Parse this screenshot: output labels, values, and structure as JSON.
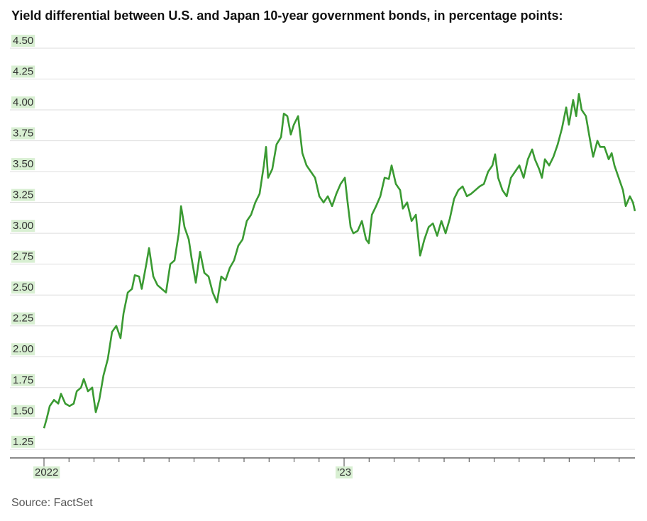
{
  "chart_data": {
    "type": "line",
    "title": "Yield differential between U.S. and Japan 10-year government bonds, in percentage points:",
    "source": "Source: FactSet",
    "x": [
      0,
      0.11,
      0.23,
      0.4,
      0.57,
      0.68,
      0.85,
      1.02,
      1.19,
      1.31,
      1.48,
      1.59,
      1.76,
      1.93,
      2.07,
      2.21,
      2.38,
      2.55,
      2.72,
      2.89,
      3.06,
      3.18,
      3.35,
      3.52,
      3.63,
      3.8,
      3.91,
      4.09,
      4.2,
      4.37,
      4.54,
      4.71,
      4.88,
      5.05,
      5.22,
      5.39,
      5.48,
      5.62,
      5.79,
      5.9,
      6.07,
      6.24,
      6.41,
      6.58,
      6.75,
      6.92,
      7.09,
      7.26,
      7.43,
      7.6,
      7.77,
      7.94,
      8.11,
      8.28,
      8.45,
      8.62,
      8.79,
      8.88,
      8.96,
      9.13,
      9.3,
      9.48,
      9.59,
      9.73,
      9.87,
      9.99,
      10.16,
      10.33,
      10.5,
      10.67,
      10.84,
      11.01,
      11.18,
      11.35,
      11.52,
      11.69,
      11.86,
      12.03,
      12.14,
      12.26,
      12.37,
      12.54,
      12.71,
      12.88,
      12.99,
      13.11,
      13.28,
      13.45,
      13.62,
      13.79,
      13.9,
      14.07,
      14.24,
      14.35,
      14.52,
      14.7,
      14.87,
      15.04,
      15.21,
      15.38,
      15.55,
      15.72,
      15.89,
      16.06,
      16.23,
      16.4,
      16.57,
      16.74,
      16.91,
      17.08,
      17.25,
      17.42,
      17.59,
      17.76,
      17.93,
      18.04,
      18.16,
      18.33,
      18.5,
      18.67,
      18.84,
      19.01,
      19.18,
      19.35,
      19.52,
      19.63,
      19.8,
      19.91,
      20.03,
      20.2,
      20.37,
      20.54,
      20.71,
      20.88,
      20.99,
      21.16,
      21.28,
      21.39,
      21.5,
      21.67,
      21.84,
      21.96,
      22.13,
      22.24,
      22.41,
      22.58,
      22.7,
      22.81,
      22.98,
      23.15,
      23.26,
      23.43,
      23.55,
      23.63
    ],
    "series": [
      {
        "name": "Yield differential",
        "color": "#3a9a32",
        "values": [
          1.42,
          1.5,
          1.6,
          1.65,
          1.62,
          1.7,
          1.62,
          1.6,
          1.62,
          1.72,
          1.75,
          1.82,
          1.72,
          1.75,
          1.55,
          1.65,
          1.85,
          1.98,
          2.2,
          2.25,
          2.15,
          2.35,
          2.52,
          2.55,
          2.66,
          2.65,
          2.55,
          2.75,
          2.88,
          2.65,
          2.58,
          2.55,
          2.52,
          2.75,
          2.78,
          3.0,
          3.22,
          3.05,
          2.95,
          2.8,
          2.6,
          2.85,
          2.68,
          2.65,
          2.52,
          2.44,
          2.65,
          2.62,
          2.72,
          2.78,
          2.9,
          2.95,
          3.1,
          3.15,
          3.25,
          3.32,
          3.55,
          3.7,
          3.45,
          3.52,
          3.72,
          3.78,
          3.97,
          3.95,
          3.8,
          3.88,
          3.95,
          3.65,
          3.55,
          3.5,
          3.45,
          3.3,
          3.25,
          3.3,
          3.22,
          3.32,
          3.4,
          3.45,
          3.25,
          3.05,
          3.0,
          3.02,
          3.1,
          2.95,
          2.92,
          3.15,
          3.22,
          3.3,
          3.45,
          3.44,
          3.55,
          3.4,
          3.35,
          3.2,
          3.25,
          3.1,
          3.15,
          2.82,
          2.95,
          3.05,
          3.08,
          2.98,
          3.1,
          3.0,
          3.12,
          3.28,
          3.35,
          3.38,
          3.3,
          3.32,
          3.35,
          3.38,
          3.4,
          3.5,
          3.55,
          3.64,
          3.45,
          3.35,
          3.3,
          3.45,
          3.5,
          3.55,
          3.45,
          3.6,
          3.68,
          3.6,
          3.52,
          3.45,
          3.6,
          3.55,
          3.62,
          3.72,
          3.85,
          4.02,
          3.88,
          4.08,
          3.95,
          4.13,
          4.0,
          3.95,
          3.75,
          3.62,
          3.75,
          3.7,
          3.7,
          3.6,
          3.65,
          3.55,
          3.45,
          3.35,
          3.22,
          3.3,
          3.25,
          3.18
        ]
      }
    ],
    "xlim": [
      0,
      23.63
    ],
    "xticks": [
      {
        "value": 0,
        "label": "2022"
      },
      {
        "value": 12,
        "label": "’23"
      }
    ],
    "x_minor_ticks": [
      1,
      2,
      3,
      4,
      5,
      6,
      7,
      8,
      9,
      10,
      11,
      13,
      14,
      15,
      16,
      17,
      18,
      19,
      20,
      21,
      22,
      23
    ],
    "ylim": [
      1.18,
      4.5
    ],
    "yticks": [
      {
        "value": 4.5,
        "label": "4.50"
      },
      4.25,
      {
        "value": 4.0,
        "label": "4.00"
      },
      3.75,
      {
        "value": 3.5,
        "label": "3.50"
      },
      3.25,
      {
        "value": 3.0,
        "label": "3.00"
      },
      2.75,
      {
        "value": 2.5,
        "label": "2.50"
      },
      2.25,
      {
        "value": 2.0,
        "label": "2.00"
      },
      1.75,
      {
        "value": 1.5,
        "label": "1.50"
      },
      1.25
    ],
    "grid": true,
    "tick_label_highlight": "#d8efd2"
  }
}
